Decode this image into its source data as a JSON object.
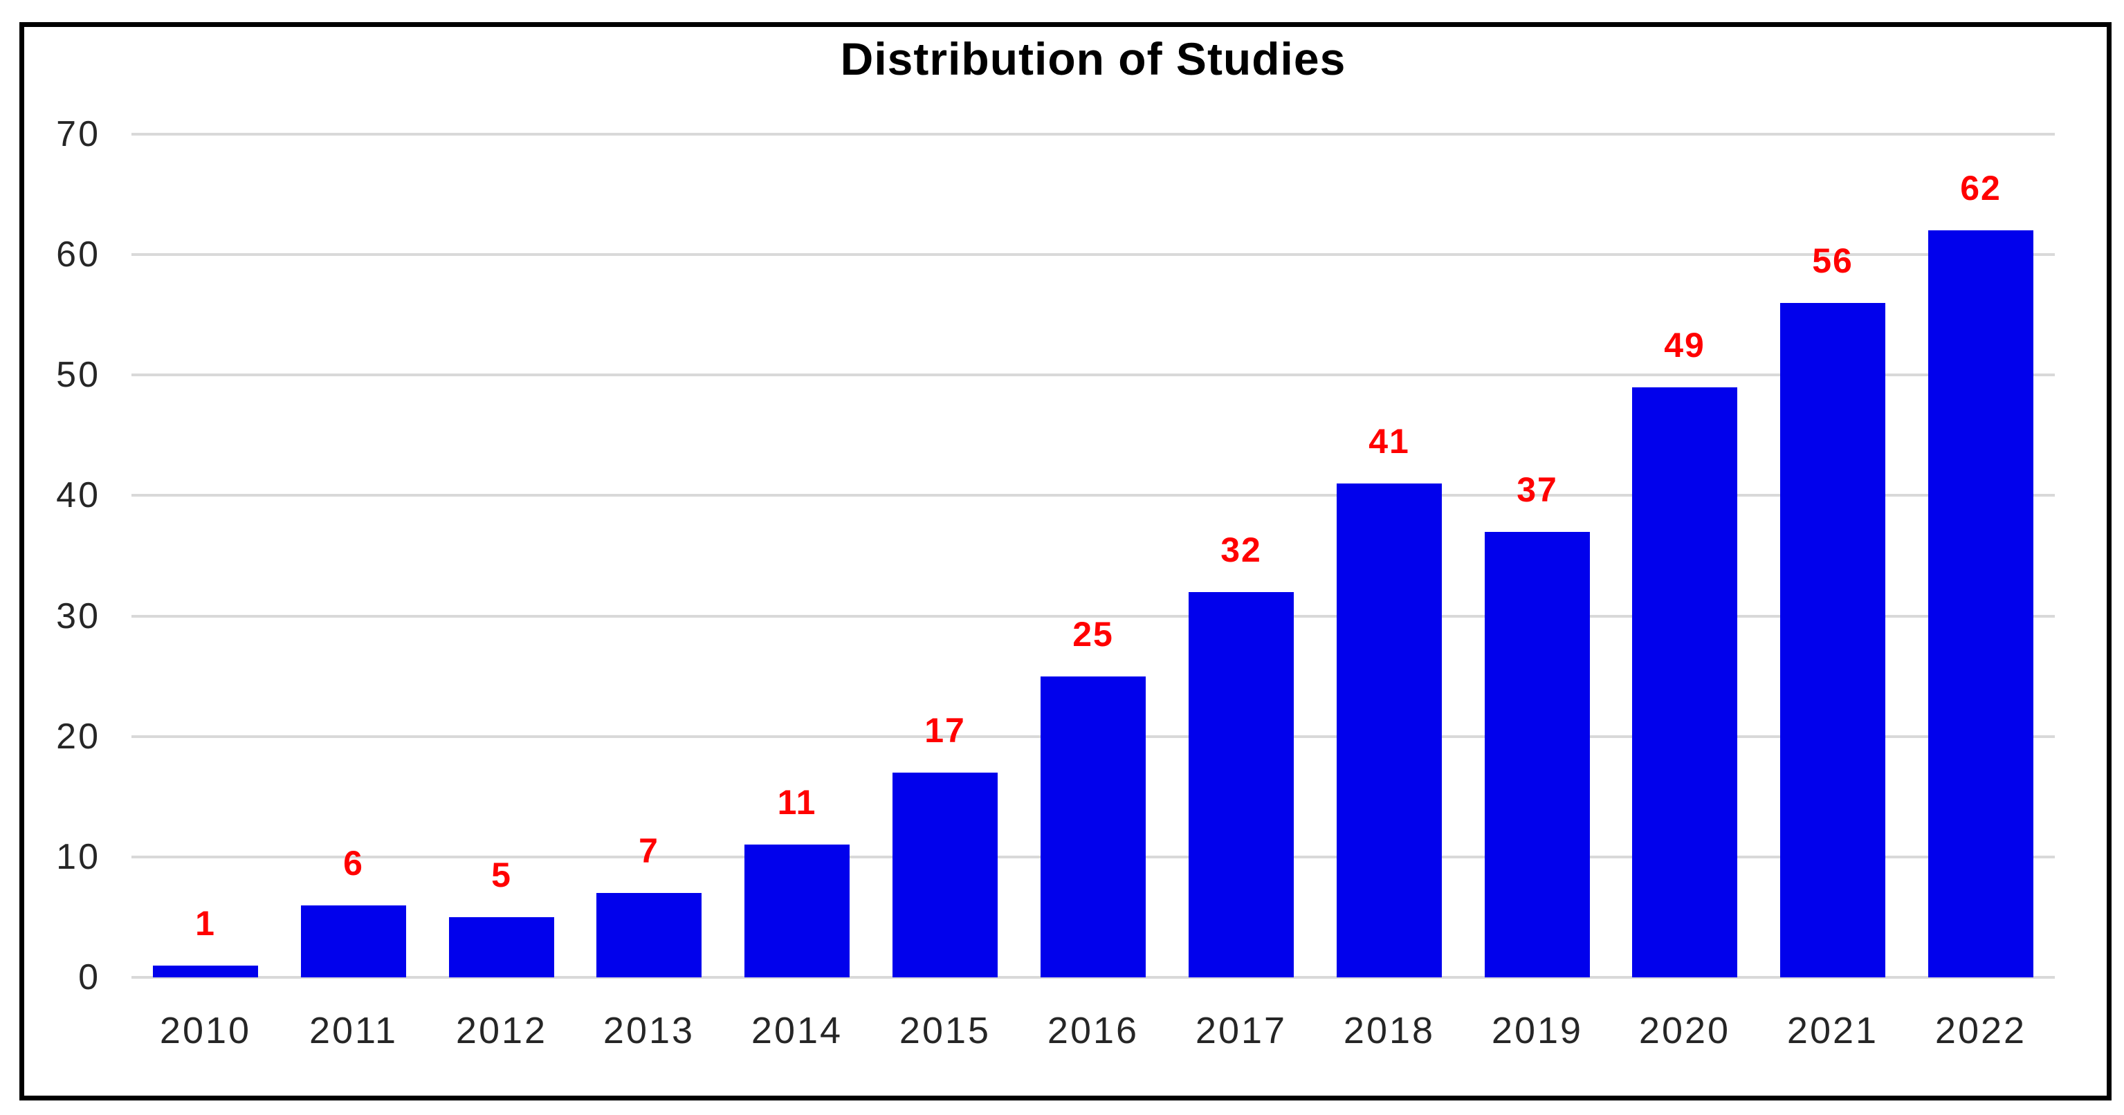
{
  "chart_data": {
    "type": "bar",
    "title": "Distribution of Studies",
    "categories": [
      "2010",
      "2011",
      "2012",
      "2013",
      "2014",
      "2015",
      "2016",
      "2017",
      "2018",
      "2019",
      "2020",
      "2021",
      "2022"
    ],
    "values": [
      1,
      6,
      5,
      7,
      11,
      17,
      25,
      32,
      41,
      37,
      49,
      56,
      62
    ],
    "xlabel": "",
    "ylabel": "",
    "ylim": [
      0,
      70
    ],
    "yticks": [
      0,
      10,
      20,
      30,
      40,
      50,
      60,
      70
    ],
    "grid": "horizontal-only",
    "legend": "none",
    "bar_color": "#0101EC",
    "value_label_color": "#FF0000",
    "gridline_color": "#D9D9D9",
    "axis_text_color": "#262626",
    "frame_border_color": "#000000",
    "background_color": "#FFFFFF"
  }
}
